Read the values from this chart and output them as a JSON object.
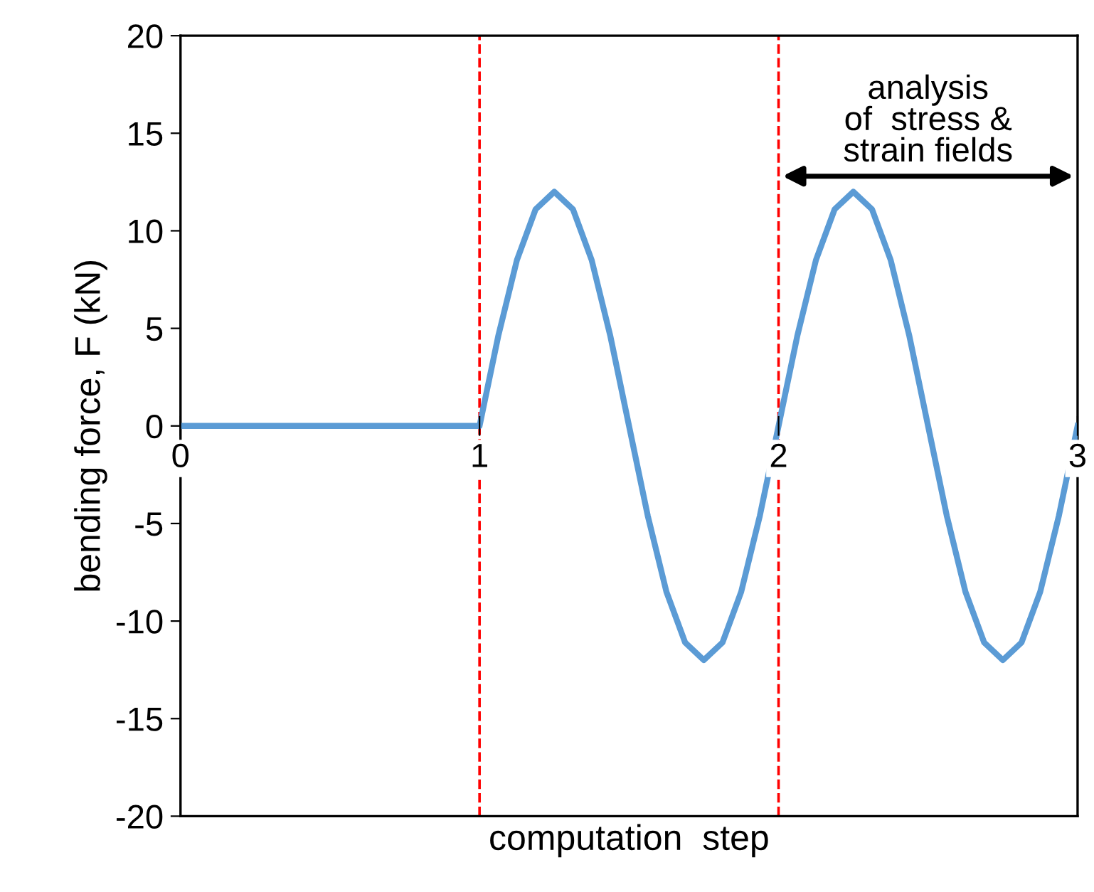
{
  "chart_data": {
    "type": "line",
    "xlabel": "computation  step",
    "ylabel": "bending force, F (kN)",
    "series": [
      {
        "color": "#5b9bd5",
        "x": [
          0,
          1,
          1.0625,
          1.125,
          1.1875,
          1.25,
          1.3125,
          1.375,
          1.4375,
          1.5,
          1.5625,
          1.625,
          1.6875,
          1.75,
          1.8125,
          1.875,
          1.9375,
          2,
          2.0625,
          2.125,
          2.1875,
          2.25,
          2.3125,
          2.375,
          2.4375,
          2.5,
          2.5625,
          2.625,
          2.6875,
          2.75,
          2.8125,
          2.875,
          2.9375,
          3
        ],
        "values": [
          0,
          0,
          4.6,
          8.5,
          11.1,
          12,
          11.1,
          8.5,
          4.6,
          0,
          -4.6,
          -8.5,
          -11.1,
          -12,
          -11.1,
          -8.5,
          -4.6,
          0,
          4.6,
          8.5,
          11.1,
          12,
          11.1,
          8.5,
          4.6,
          0,
          -4.6,
          -8.5,
          -11.1,
          -12,
          -11.1,
          -8.5,
          -4.6,
          0
        ]
      }
    ],
    "xlim": [
      0,
      3
    ],
    "xticks": [
      0,
      1,
      2,
      3
    ],
    "ylim": [
      -20,
      20
    ],
    "yticks": [
      -20,
      -15,
      -10,
      -5,
      0,
      5,
      10,
      15,
      20
    ],
    "ref_lines": [
      {
        "axis": "x",
        "value": 1,
        "color": "#ff0000",
        "line_style": "dashed"
      },
      {
        "axis": "x",
        "value": 2,
        "color": "#ff0000",
        "line_style": "dashed"
      }
    ],
    "annotations": [
      "analysis\nof  stress &\nstrain fields"
    ],
    "grid": false,
    "marker": "none",
    "line_style": "solid"
  }
}
